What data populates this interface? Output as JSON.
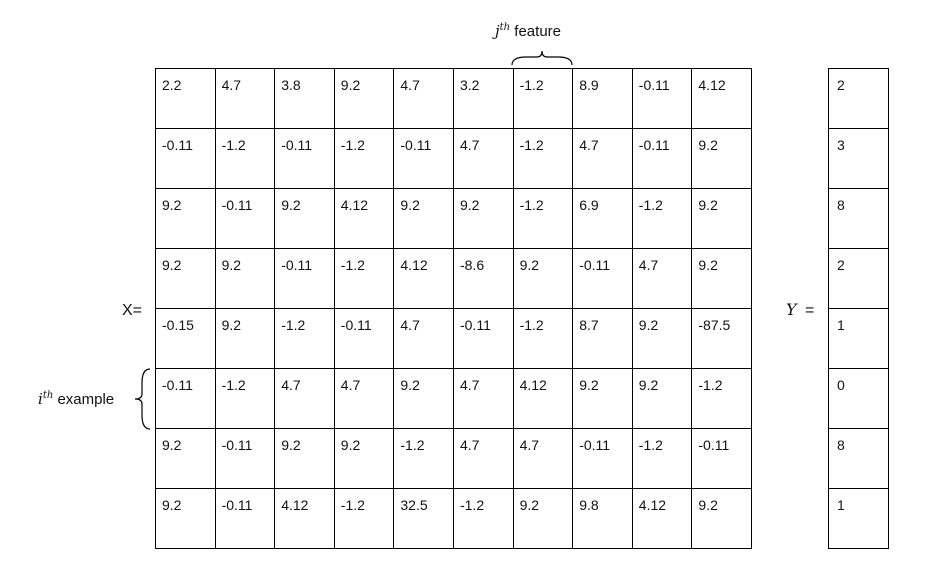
{
  "x_label": "X=",
  "y_label_var": "Y",
  "y_label_eq": "=",
  "feature_label": {
    "symbol": "j",
    "superscript": "th",
    "text": "feature"
  },
  "example_label": {
    "symbol": "i",
    "superscript": "th",
    "text": "example"
  },
  "matrix_x": [
    [
      "2.2",
      "4.7",
      "3.8",
      "9.2",
      "4.7",
      "3.2",
      "-1.2",
      "8.9",
      "-0.11",
      "4.12"
    ],
    [
      "-0.11",
      "-1.2",
      "-0.11",
      "-1.2",
      "-0.11",
      "4.7",
      "-1.2",
      "4.7",
      "-0.11",
      "9.2"
    ],
    [
      "9.2",
      "-0.11",
      "9.2",
      "4.12",
      "9.2",
      "9.2",
      "-1.2",
      "6.9",
      "-1.2",
      "9.2"
    ],
    [
      "9.2",
      "9.2",
      "-0.11",
      "-1.2",
      "4.12",
      "-8.6",
      "9.2",
      "-0.11",
      "4.7",
      "9.2"
    ],
    [
      "-0.15",
      "9.2",
      "-1.2",
      "-0.11",
      "4.7",
      "-0.11",
      "-1.2",
      "8.7",
      "9.2",
      "-87.5"
    ],
    [
      "-0.11",
      "-1.2",
      "4.7",
      "4.7",
      "9.2",
      "4.7",
      "4.12",
      "9.2",
      "9.2",
      "-1.2"
    ],
    [
      "9.2",
      "-0.11",
      "9.2",
      "9.2",
      "-1.2",
      "4.7",
      "4.7",
      "-0.11",
      "-1.2",
      "-0.11"
    ],
    [
      "9.2",
      "-0.11",
      "4.12",
      "-1.2",
      "32.5",
      "-1.2",
      "9.2",
      "9.8",
      "4.12",
      "9.2"
    ]
  ],
  "vector_y": [
    "2",
    "3",
    "8",
    "2",
    "1",
    "0",
    "8",
    "1"
  ]
}
